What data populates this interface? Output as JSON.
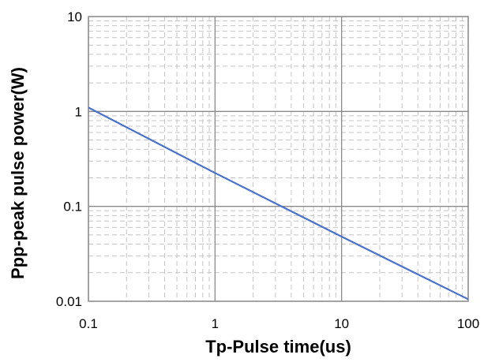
{
  "chart_data": {
    "type": "line",
    "title": "",
    "xlabel": "Tp-Pulse time(us)",
    "ylabel": "Ppp-peak pulse power(W)",
    "x_scale": "log",
    "y_scale": "log",
    "xlim": [
      0.1,
      100
    ],
    "ylim": [
      0.01,
      10
    ],
    "x_ticks": [
      0.1,
      1,
      10,
      100
    ],
    "x_tick_labels": [
      "0.1",
      "1",
      "10",
      "100"
    ],
    "y_ticks": [
      0.01,
      0.1,
      1,
      10
    ],
    "y_tick_labels": [
      "0.01",
      "0.1",
      "1",
      "10"
    ],
    "grid": true,
    "legend": "none",
    "series": [
      {
        "color": "#4a72c8",
        "x": [
          0.1,
          1,
          10,
          100
        ],
        "y": [
          1.1,
          0.225,
          0.048,
          0.0105
        ]
      }
    ]
  }
}
